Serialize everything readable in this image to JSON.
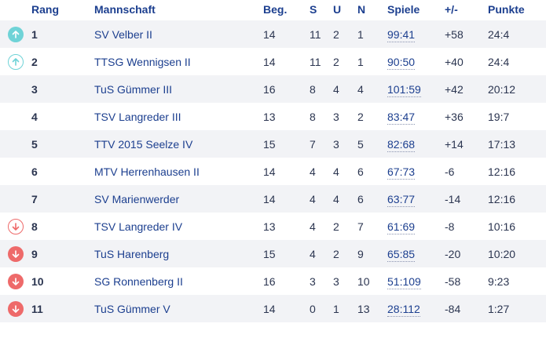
{
  "headers": {
    "rang": "Rang",
    "mannschaft": "Mannschaft",
    "beg": "Beg.",
    "s": "S",
    "u": "U",
    "n": "N",
    "spiele": "Spiele",
    "diff": "+/-",
    "punkte": "Punkte"
  },
  "colors": {
    "up": "#6fd3d7",
    "down": "#ee6a6a",
    "link": "#1c3f8f",
    "stripe": "#f2f3f6"
  },
  "rows": [
    {
      "rank": "1",
      "team": "SV Velber II",
      "beg": "14",
      "s": "11",
      "u": "2",
      "n": "1",
      "spiele": "99:41",
      "diff": "+58",
      "punkte": "24:4",
      "icon": "up-fill"
    },
    {
      "rank": "2",
      "team": "TTSG Wennigsen II",
      "beg": "14",
      "s": "11",
      "u": "2",
      "n": "1",
      "spiele": "90:50",
      "diff": "+40",
      "punkte": "24:4",
      "icon": "up-outline"
    },
    {
      "rank": "3",
      "team": "TuS Gümmer III",
      "beg": "16",
      "s": "8",
      "u": "4",
      "n": "4",
      "spiele": "101:59",
      "diff": "+42",
      "punkte": "20:12",
      "icon": ""
    },
    {
      "rank": "4",
      "team": "TSV Langreder III",
      "beg": "13",
      "s": "8",
      "u": "3",
      "n": "2",
      "spiele": "83:47",
      "diff": "+36",
      "punkte": "19:7",
      "icon": ""
    },
    {
      "rank": "5",
      "team": "TTV 2015 Seelze IV",
      "beg": "15",
      "s": "7",
      "u": "3",
      "n": "5",
      "spiele": "82:68",
      "diff": "+14",
      "punkte": "17:13",
      "icon": ""
    },
    {
      "rank": "6",
      "team": "MTV Herrenhausen II",
      "beg": "14",
      "s": "4",
      "u": "4",
      "n": "6",
      "spiele": "67:73",
      "diff": "-6",
      "punkte": "12:16",
      "icon": ""
    },
    {
      "rank": "7",
      "team": "SV Marienwerder",
      "beg": "14",
      "s": "4",
      "u": "4",
      "n": "6",
      "spiele": "63:77",
      "diff": "-14",
      "punkte": "12:16",
      "icon": ""
    },
    {
      "rank": "8",
      "team": "TSV Langreder IV",
      "beg": "13",
      "s": "4",
      "u": "2",
      "n": "7",
      "spiele": "61:69",
      "diff": "-8",
      "punkte": "10:16",
      "icon": "down-outline"
    },
    {
      "rank": "9",
      "team": "TuS Harenberg",
      "beg": "15",
      "s": "4",
      "u": "2",
      "n": "9",
      "spiele": "65:85",
      "diff": "-20",
      "punkte": "10:20",
      "icon": "down-fill"
    },
    {
      "rank": "10",
      "team": "SG Ronnenberg II",
      "beg": "16",
      "s": "3",
      "u": "3",
      "n": "10",
      "spiele": "51:109",
      "diff": "-58",
      "punkte": "9:23",
      "icon": "down-fill"
    },
    {
      "rank": "11",
      "team": "TuS Gümmer V",
      "beg": "14",
      "s": "0",
      "u": "1",
      "n": "13",
      "spiele": "28:112",
      "diff": "-84",
      "punkte": "1:27",
      "icon": "down-fill"
    }
  ]
}
